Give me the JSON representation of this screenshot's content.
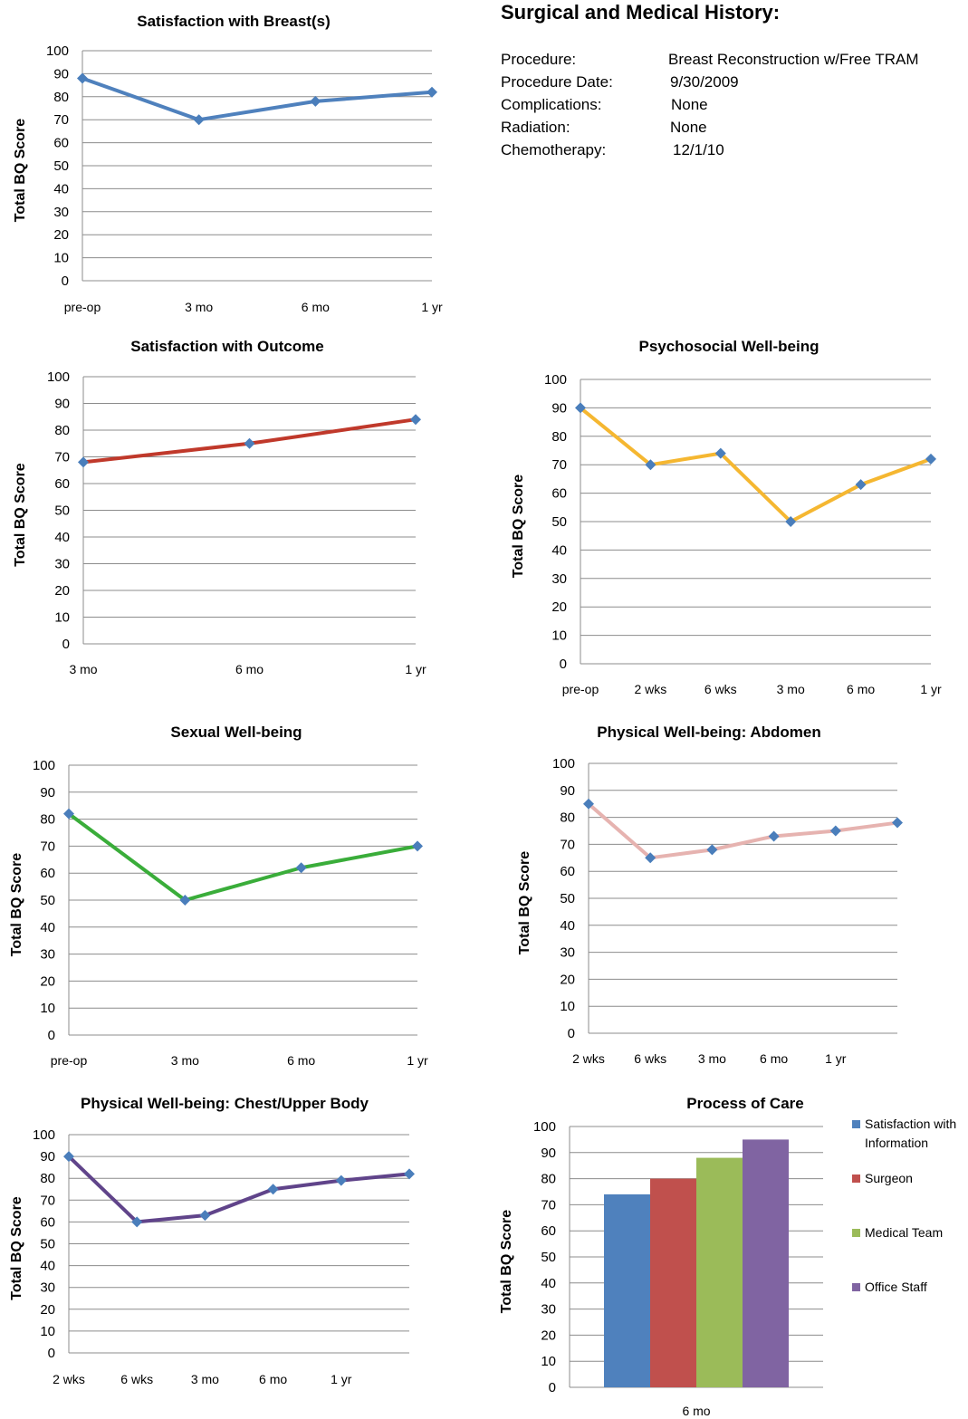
{
  "history": {
    "title": "Surgical and Medical History:",
    "rows": [
      {
        "label": "Procedure:",
        "value": "Breast Reconstruction w/Free TRAM"
      },
      {
        "label": "Procedure Date:",
        "value": "9/30/2009"
      },
      {
        "label": "Complications:",
        "value": "None"
      },
      {
        "label": "Radiation:",
        "value": "None"
      },
      {
        "label": "Chemotherapy:",
        "value": "12/1/10"
      }
    ]
  },
  "colors": {
    "grid": "#8c8c8c",
    "marker": "#4a7ebb"
  },
  "chart_data": [
    {
      "type": "line",
      "title": "Satisfaction with Breast(s)",
      "ylabel": "Total BQ Score",
      "xlabel": "",
      "ylim": [
        0,
        100
      ],
      "yticks": [
        0,
        10,
        20,
        30,
        40,
        50,
        60,
        70,
        80,
        90,
        100
      ],
      "categories": [
        "pre-op",
        "3 mo",
        "6 mo",
        "1 yr"
      ],
      "values": [
        88,
        70,
        78,
        82
      ],
      "color": "#4f81bd",
      "grid": true
    },
    {
      "type": "line",
      "title": "Satisfaction with Outcome",
      "ylabel": "Total BQ Score",
      "xlabel": "",
      "ylim": [
        0,
        100
      ],
      "yticks": [
        0,
        10,
        20,
        30,
        40,
        50,
        60,
        70,
        80,
        90,
        100
      ],
      "categories": [
        "3 mo",
        "6 mo",
        "1 yr"
      ],
      "values": [
        68,
        75,
        84
      ],
      "color": "#c0392b",
      "grid": true
    },
    {
      "type": "line",
      "title": "Psychosocial Well-being",
      "ylabel": "Total BQ Score",
      "xlabel": "",
      "ylim": [
        0,
        100
      ],
      "yticks": [
        0,
        10,
        20,
        30,
        40,
        50,
        60,
        70,
        80,
        90,
        100
      ],
      "categories": [
        "pre-op",
        "2 wks",
        "6 wks",
        "3 mo",
        "6 mo",
        "1 yr"
      ],
      "values": [
        90,
        70,
        74,
        50,
        63,
        72
      ],
      "color": "#f5b731",
      "grid": true
    },
    {
      "type": "line",
      "title": "Sexual Well-being",
      "ylabel": "Total BQ Score",
      "xlabel": "",
      "ylim": [
        0,
        100
      ],
      "yticks": [
        0,
        10,
        20,
        30,
        40,
        50,
        60,
        70,
        80,
        90,
        100
      ],
      "categories": [
        "pre-op",
        "3 mo",
        "6 mo",
        "1 yr"
      ],
      "values": [
        82,
        50,
        62,
        70
      ],
      "color": "#3aad3a",
      "grid": true
    },
    {
      "type": "line",
      "title": "Physical Well-being: Abdomen",
      "ylabel": "Total BQ Score",
      "xlabel": "",
      "ylim": [
        0,
        100
      ],
      "yticks": [
        0,
        10,
        20,
        30,
        40,
        50,
        60,
        70,
        80,
        90,
        100
      ],
      "categories": [
        "2 wks",
        "6 wks",
        "3 mo",
        "6 mo",
        "1 yr",
        ""
      ],
      "values": [
        85,
        65,
        68,
        73,
        75,
        78
      ],
      "color": "#e6b3b0",
      "grid": true
    },
    {
      "type": "line",
      "title": "Physical Well-being: Chest/Upper Body",
      "ylabel": "Total BQ Score",
      "xlabel": "",
      "ylim": [
        0,
        100
      ],
      "yticks": [
        0,
        10,
        20,
        30,
        40,
        50,
        60,
        70,
        80,
        90,
        100
      ],
      "categories": [
        "2 wks",
        "6 wks",
        "3 mo",
        "6 mo",
        "1 yr",
        ""
      ],
      "values": [
        90,
        60,
        63,
        75,
        79,
        82
      ],
      "color": "#60448a",
      "grid": true
    },
    {
      "type": "bar",
      "title": "Process of Care",
      "ylabel": "Total BQ Score",
      "xlabel": "",
      "ylim": [
        0,
        100
      ],
      "yticks": [
        0,
        10,
        20,
        30,
        40,
        50,
        60,
        70,
        80,
        90,
        100
      ],
      "categories": [
        "6 mo"
      ],
      "series": [
        {
          "name": "Satisfaction with Information",
          "values": [
            74
          ],
          "color": "#4f81bd"
        },
        {
          "name": "Surgeon",
          "values": [
            80
          ],
          "color": "#c0504d"
        },
        {
          "name": "Medical Team",
          "values": [
            88
          ],
          "color": "#9bbb59"
        },
        {
          "name": "Office Staff",
          "values": [
            95
          ],
          "color": "#8064a2"
        }
      ],
      "legend": "right",
      "grid": true
    }
  ]
}
